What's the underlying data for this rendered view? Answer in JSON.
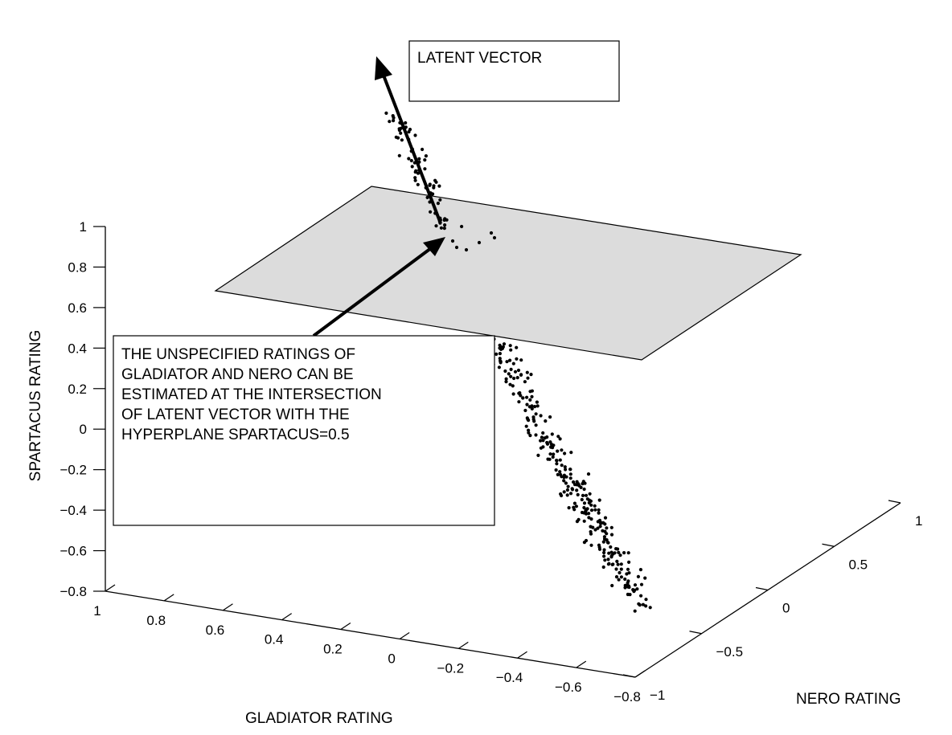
{
  "chart_data": {
    "type": "scatter",
    "projection": "3d",
    "grid": false,
    "x_axis": {
      "label": "GLADIATOR RATING",
      "range": [
        -0.8,
        1
      ],
      "ticks": [
        {
          "value": 1,
          "label": "1"
        },
        {
          "value": 0.8,
          "label": "0.8"
        },
        {
          "value": 0.6,
          "label": "0.6"
        },
        {
          "value": 0.4,
          "label": "0.4"
        },
        {
          "value": 0.2,
          "label": "0.2"
        },
        {
          "value": 0,
          "label": "0"
        },
        {
          "value": -0.2,
          "label": "−0.2"
        },
        {
          "value": -0.4,
          "label": "−0.4"
        },
        {
          "value": -0.6,
          "label": "−0.6"
        },
        {
          "value": -0.8,
          "label": "−0.8"
        }
      ]
    },
    "y_axis": {
      "label": "NERO RATING",
      "range": [
        -1,
        1
      ],
      "ticks": [
        {
          "value": -1,
          "label": "−1"
        },
        {
          "value": -0.5,
          "label": "−0.5"
        },
        {
          "value": 0,
          "label": "0"
        },
        {
          "value": 0.5,
          "label": "0.5"
        },
        {
          "value": 1,
          "label": "1"
        }
      ]
    },
    "z_axis": {
      "label": "SPARTACUS RATING",
      "range": [
        -0.8,
        1
      ],
      "ticks": [
        {
          "value": 1,
          "label": "1"
        },
        {
          "value": 0.8,
          "label": "0.8"
        },
        {
          "value": 0.6,
          "label": "0.6"
        },
        {
          "value": 0.4,
          "label": "0.4"
        },
        {
          "value": 0.2,
          "label": "0.2"
        },
        {
          "value": 0,
          "label": "0"
        },
        {
          "value": -0.2,
          "label": "−0.2"
        },
        {
          "value": -0.4,
          "label": "−0.4"
        },
        {
          "value": -0.6,
          "label": "−0.6"
        },
        {
          "value": -0.8,
          "label": "−0.8"
        }
      ]
    },
    "hyperplane": {
      "equation": "SPARTACUS=0.5",
      "color": "#dcdcdc"
    },
    "point_cloud": {
      "description_free": true,
      "count": 360,
      "along_latent_vector_from": [
        -0.6,
        0.4
      ],
      "color": "#000000"
    },
    "annotations": [
      {
        "id": "latent-vector",
        "text": "LATENT VECTOR"
      },
      {
        "id": "intersection-note",
        "lines": [
          "THE UNSPECIFIED RATINGS OF",
          "GLADIATOR AND NERO CAN BE",
          "ESTIMATED AT THE INTERSECTION",
          "OF LATENT VECTOR WITH THE",
          "HYPERPLANE SPARTACUS=0.5"
        ]
      }
    ]
  }
}
